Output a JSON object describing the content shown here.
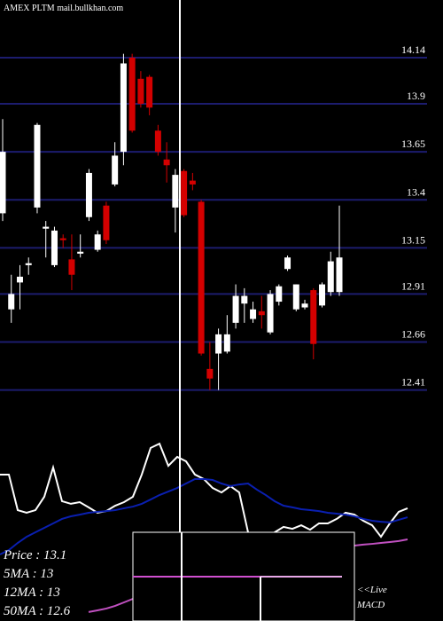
{
  "chart_data": {
    "type": "candlestick",
    "title": "AMEX  PLTM mail.bullkhan.com",
    "ylim": [
      12.27,
      14.44
    ],
    "yticks": [
      14.14,
      13.9,
      13.65,
      13.4,
      13.15,
      12.91,
      12.66,
      12.41
    ],
    "grid": true,
    "grid_color": "#1c1c6e",
    "up_color": "#ffffff",
    "down_color": "#d40000",
    "open": [
      13.33,
      12.83,
      12.97,
      13.06,
      13.36,
      13.25,
      13.06,
      13.2,
      13.09,
      13.12,
      13.31,
      13.14,
      13.37,
      13.48,
      13.65,
      14.14,
      14.03,
      14.04,
      13.76,
      13.61,
      13.36,
      13.55,
      13.5,
      13.39,
      12.52,
      12.6,
      12.61,
      12.76,
      12.86,
      12.78,
      12.82,
      12.71,
      12.87,
      13.04,
      12.83,
      12.84,
      12.93,
      12.85,
      12.92,
      12.92
    ],
    "high": [
      13.82,
      13.01,
      13.06,
      13.1,
      13.8,
      13.29,
      13.26,
      13.22,
      13.22,
      13.22,
      13.56,
      13.24,
      13.39,
      13.7,
      14.16,
      14.16,
      14.07,
      14.05,
      13.79,
      13.7,
      13.56,
      13.56,
      13.54,
      13.4,
      12.66,
      12.73,
      12.8,
      12.96,
      12.94,
      12.87,
      12.9,
      12.93,
      12.96,
      13.11,
      12.96,
      12.88,
      12.94,
      12.97,
      13.13,
      13.37
    ],
    "low": [
      13.29,
      12.76,
      12.83,
      13.01,
      13.33,
      13.1,
      13.05,
      13.15,
      12.93,
      13.1,
      13.29,
      13.13,
      13.17,
      13.47,
      13.58,
      13.75,
      13.88,
      13.84,
      13.63,
      13.49,
      13.23,
      13.31,
      13.45,
      12.59,
      12.41,
      12.41,
      12.6,
      12.73,
      12.76,
      12.76,
      12.73,
      12.7,
      12.85,
      13.03,
      12.82,
      12.83,
      12.57,
      12.84,
      12.9,
      12.9
    ],
    "close": [
      13.65,
      12.91,
      13.0,
      13.07,
      13.79,
      13.26,
      13.24,
      13.19,
      13.01,
      13.13,
      13.54,
      13.22,
      13.19,
      13.63,
      14.11,
      13.76,
      13.9,
      13.88,
      13.65,
      13.58,
      13.53,
      13.32,
      13.48,
      12.6,
      12.47,
      12.7,
      12.7,
      12.9,
      12.9,
      12.83,
      12.8,
      12.91,
      12.95,
      13.1,
      12.96,
      12.86,
      12.65,
      12.96,
      13.08,
      13.1
    ],
    "indicator_lim": [
      0,
      100
    ],
    "indicators": [
      {
        "color": "#ffffff",
        "values": [
          78.6,
          78.6,
          59.5,
          58.1,
          59.5,
          66.7,
          82.4,
          64.3,
          62.9,
          63.8,
          61.0,
          58.1,
          59.0,
          61.9,
          63.8,
          66.7,
          78.6,
          92.9,
          95.2,
          83.3,
          88.1,
          85.7,
          78.6,
          76.2,
          71.4,
          69.0,
          72.4,
          69.0,
          47.6,
          38.1,
          40.5,
          47.6,
          50.5,
          49.5,
          51.4,
          49.0,
          52.4,
          52.4,
          54.8,
          58.1,
          57.1,
          53.8,
          51.4,
          45.2,
          52.4,
          58.6,
          60.5
        ]
      },
      {
        "color": "#0a1fb0",
        "values": [
          35.7,
          38.1,
          41.9,
          45.2,
          47.6,
          50.0,
          52.4,
          54.8,
          56.2,
          57.1,
          58.1,
          58.6,
          59.0,
          59.5,
          60.5,
          61.4,
          62.9,
          65.2,
          67.6,
          69.5,
          71.4,
          73.8,
          76.2,
          76.2,
          75.7,
          73.8,
          72.4,
          73.3,
          73.8,
          70.5,
          67.6,
          64.3,
          61.9,
          61.0,
          60.0,
          59.5,
          59.0,
          58.1,
          57.6,
          57.1,
          56.2,
          54.8,
          53.8,
          53.3,
          52.9,
          54.3,
          55.7
        ]
      },
      {
        "color": "#c050c0",
        "values": [
          null,
          null,
          null,
          null,
          null,
          null,
          null,
          null,
          null,
          null,
          4.8,
          5.7,
          6.7,
          8.1,
          10.0,
          11.9,
          14.3,
          16.7,
          19.0,
          21.4,
          23.8,
          24.6,
          25.5,
          26.3,
          27.1,
          28.0,
          28.8,
          29.6,
          30.5,
          31.3,
          32.1,
          33.0,
          33.8,
          34.6,
          35.5,
          36.3,
          37.1,
          38.0,
          38.8,
          39.6,
          40.5,
          41.0,
          41.4,
          41.9,
          42.4,
          42.9,
          43.8
        ]
      }
    ],
    "info_lines": [
      "Price : 13.1",
      "5MA : 13",
      "12MA : 13",
      "50MA : 12.6"
    ],
    "live_label": "<<Live",
    "macd_label": "MACD"
  }
}
